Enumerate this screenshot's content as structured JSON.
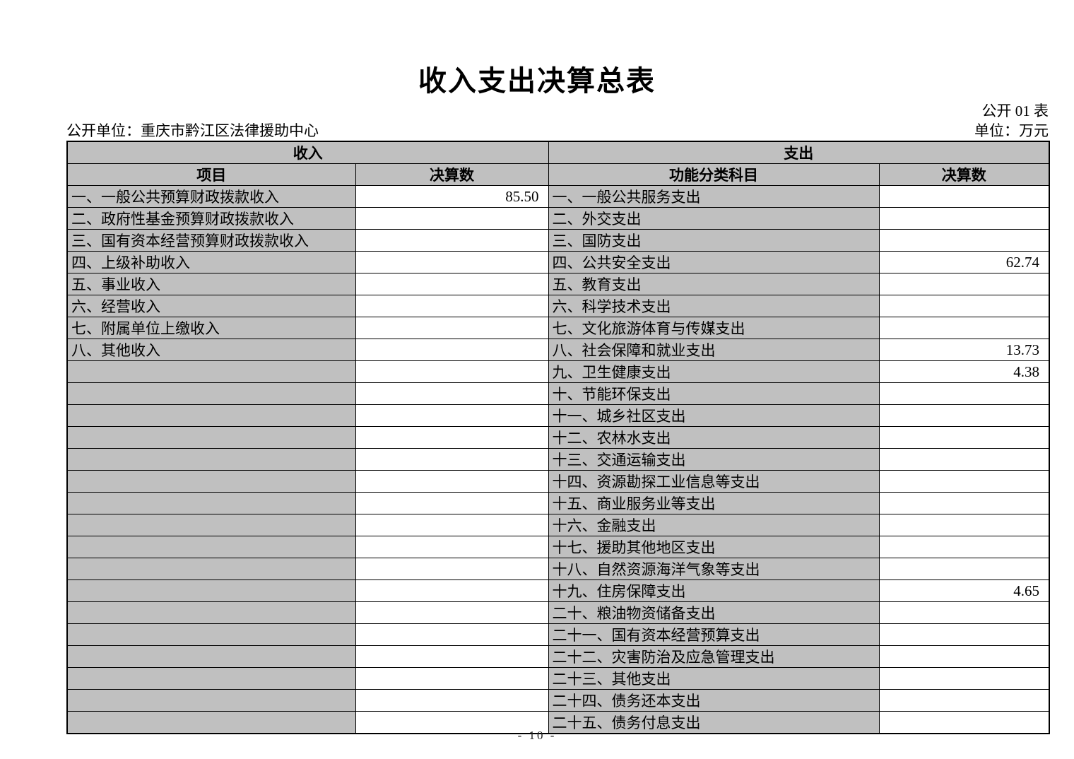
{
  "title": "收入支出决算总表",
  "meta": {
    "table_no": "公开 01 表",
    "publish_unit": "公开单位：重庆市黔江区法律援助中心",
    "unit": "单位：万元"
  },
  "colors": {
    "cell_gray": "#c0c0c0",
    "border": "#000000"
  },
  "table": {
    "total_rows": 25,
    "income_section_header": "收入",
    "expense_section_header": "支出",
    "col_headers": {
      "income_item": "项目",
      "income_amount": "决算数",
      "expense_item": "功能分类科目",
      "expense_amount": "决算数"
    },
    "income_rows": [
      {
        "item": "一、一般公共预算财政拨款收入",
        "amount": "85.50"
      },
      {
        "item": "二、政府性基金预算财政拨款收入",
        "amount": ""
      },
      {
        "item": "三、国有资本经营预算财政拨款收入",
        "amount": ""
      },
      {
        "item": "四、上级补助收入",
        "amount": ""
      },
      {
        "item": "五、事业收入",
        "amount": ""
      },
      {
        "item": "六、经营收入",
        "amount": ""
      },
      {
        "item": "七、附属单位上缴收入",
        "amount": ""
      },
      {
        "item": "八、其他收入",
        "amount": ""
      }
    ],
    "expense_rows": [
      {
        "item": "一、一般公共服务支出",
        "amount": ""
      },
      {
        "item": "二、外交支出",
        "amount": ""
      },
      {
        "item": "三、国防支出",
        "amount": ""
      },
      {
        "item": "四、公共安全支出",
        "amount": "62.74"
      },
      {
        "item": "五、教育支出",
        "amount": ""
      },
      {
        "item": "六、科学技术支出",
        "amount": ""
      },
      {
        "item": "七、文化旅游体育与传媒支出",
        "amount": ""
      },
      {
        "item": "八、社会保障和就业支出",
        "amount": "13.73"
      },
      {
        "item": "九、卫生健康支出",
        "amount": "4.38"
      },
      {
        "item": "十、节能环保支出",
        "amount": ""
      },
      {
        "item": "十一、城乡社区支出",
        "amount": ""
      },
      {
        "item": "十二、农林水支出",
        "amount": ""
      },
      {
        "item": "十三、交通运输支出",
        "amount": ""
      },
      {
        "item": "十四、资源勘探工业信息等支出",
        "amount": ""
      },
      {
        "item": "十五、商业服务业等支出",
        "amount": ""
      },
      {
        "item": "十六、金融支出",
        "amount": ""
      },
      {
        "item": "十七、援助其他地区支出",
        "amount": ""
      },
      {
        "item": "十八、自然资源海洋气象等支出",
        "amount": ""
      },
      {
        "item": "十九、住房保障支出",
        "amount": "4.65"
      },
      {
        "item": "二十、粮油物资储备支出",
        "amount": ""
      },
      {
        "item": "二十一、国有资本经营预算支出",
        "amount": ""
      },
      {
        "item": "二十二、灾害防治及应急管理支出",
        "amount": ""
      },
      {
        "item": "二十三、其他支出",
        "amount": ""
      },
      {
        "item": "二十四、债务还本支出",
        "amount": ""
      },
      {
        "item": "二十五、债务付息支出",
        "amount": ""
      }
    ]
  },
  "page_number": "- 10 -"
}
